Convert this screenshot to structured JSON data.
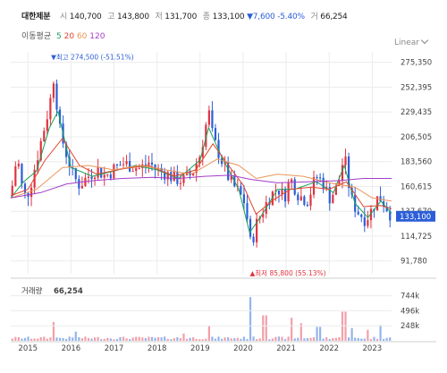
{
  "header": {
    "name": "대한제분",
    "open_label": "시",
    "open": "140,700",
    "high_label": "고",
    "high": "143,800",
    "low_label": "저",
    "low": "131,700",
    "close_label": "종",
    "close": "133,100",
    "change": "▼7,600 -5.40%",
    "volume_label": "거",
    "volume": "66,254"
  },
  "ma_legend": {
    "label": "이동평균",
    "items": [
      {
        "text": "5",
        "color": "#1aa05a"
      },
      {
        "text": "20",
        "color": "#e0462e"
      },
      {
        "text": "60",
        "color": "#e8965a"
      },
      {
        "text": "120",
        "color": "#a33cc8"
      }
    ]
  },
  "scale_mode": "Linear",
  "colors": {
    "up": "#e0333f",
    "down": "#2b5ed7",
    "price_tag": "#2b5ed7",
    "ma5": "#1aa05a",
    "ma20": "#e0462e",
    "ma60": "#e8965a",
    "ma120": "#a33cc8",
    "volume_up": "#f2a0a8",
    "volume_down": "#94b4ec",
    "grid": "#ececec"
  },
  "chart_data": {
    "type": "candlestick",
    "title": "대한제분",
    "price_axis": {
      "ticks": [
        275350,
        252395,
        229435,
        206505,
        183560,
        160615,
        137670,
        114725,
        91780
      ],
      "tick_labels": [
        "275,350",
        "252,395",
        "229,435",
        "206,505",
        "183,560",
        "160,615",
        "137,670",
        "114,725",
        "91,780"
      ],
      "range": [
        80000,
        285000
      ]
    },
    "x_axis": {
      "labels": [
        "2015",
        "2016",
        "2017",
        "2018",
        "2019",
        "2020",
        "2021",
        "2022",
        "2023"
      ],
      "range": [
        2014.6,
        2023.45
      ]
    },
    "current_price": 133100,
    "current_price_label": "133,100",
    "annotations": [
      {
        "text": "최고 274,500 (-51.51%)",
        "date": 2015.6,
        "price": 274500,
        "marker": "▼"
      },
      {
        "text": "최저 85,800 (55.13%)",
        "date": 2020.22,
        "price": 85800,
        "marker": "▲"
      }
    ],
    "price_path": [
      [
        2014.6,
        152000
      ],
      [
        2014.75,
        190000
      ],
      [
        2014.85,
        162000
      ],
      [
        2014.95,
        150000
      ],
      [
        2015.05,
        160000
      ],
      [
        2015.2,
        185000
      ],
      [
        2015.35,
        210000
      ],
      [
        2015.5,
        235000
      ],
      [
        2015.6,
        262000
      ],
      [
        2015.75,
        210000
      ],
      [
        2015.9,
        190000
      ],
      [
        2016.05,
        170000
      ],
      [
        2016.2,
        162000
      ],
      [
        2016.4,
        170000
      ],
      [
        2016.6,
        177000
      ],
      [
        2016.8,
        170000
      ],
      [
        2017.0,
        177000
      ],
      [
        2017.2,
        182000
      ],
      [
        2017.4,
        180000
      ],
      [
        2017.6,
        177000
      ],
      [
        2017.8,
        183000
      ],
      [
        2018.0,
        176000
      ],
      [
        2018.2,
        173000
      ],
      [
        2018.4,
        168000
      ],
      [
        2018.6,
        166000
      ],
      [
        2018.8,
        172000
      ],
      [
        2019.0,
        190000
      ],
      [
        2019.2,
        230000
      ],
      [
        2019.3,
        205000
      ],
      [
        2019.5,
        185000
      ],
      [
        2019.7,
        165000
      ],
      [
        2019.9,
        155000
      ],
      [
        2020.05,
        145000
      ],
      [
        2020.18,
        105000
      ],
      [
        2020.3,
        125000
      ],
      [
        2020.45,
        138000
      ],
      [
        2020.6,
        150000
      ],
      [
        2020.8,
        160000
      ],
      [
        2020.95,
        150000
      ],
      [
        2021.1,
        168000
      ],
      [
        2021.3,
        152000
      ],
      [
        2021.5,
        148000
      ],
      [
        2021.7,
        170000
      ],
      [
        2021.85,
        165000
      ],
      [
        2022.0,
        150000
      ],
      [
        2022.2,
        160000
      ],
      [
        2022.35,
        190000
      ],
      [
        2022.5,
        150000
      ],
      [
        2022.65,
        138000
      ],
      [
        2022.85,
        130000
      ],
      [
        2023.0,
        140000
      ],
      [
        2023.15,
        152000
      ],
      [
        2023.3,
        144000
      ],
      [
        2023.45,
        133100
      ]
    ],
    "ma_lines": [
      {
        "name": "5",
        "points": [
          [
            2014.6,
            150000
          ],
          [
            2014.9,
            165000
          ],
          [
            2015.2,
            175000
          ],
          [
            2015.5,
            215000
          ],
          [
            2015.7,
            230000
          ],
          [
            2016.0,
            178000
          ],
          [
            2016.5,
            170000
          ],
          [
            2017.0,
            175000
          ],
          [
            2017.5,
            180000
          ],
          [
            2018.0,
            176000
          ],
          [
            2018.5,
            168000
          ],
          [
            2019.0,
            185000
          ],
          [
            2019.2,
            215000
          ],
          [
            2019.5,
            188000
          ],
          [
            2019.9,
            158000
          ],
          [
            2020.15,
            118000
          ],
          [
            2020.4,
            132000
          ],
          [
            2020.8,
            158000
          ],
          [
            2021.2,
            158000
          ],
          [
            2021.7,
            165000
          ],
          [
            2022.1,
            155000
          ],
          [
            2022.35,
            180000
          ],
          [
            2022.6,
            145000
          ],
          [
            2022.9,
            132000
          ],
          [
            2023.2,
            147000
          ],
          [
            2023.45,
            136000
          ]
        ]
      },
      {
        "name": "20",
        "points": [
          [
            2014.6,
            152000
          ],
          [
            2015.0,
            158000
          ],
          [
            2015.4,
            185000
          ],
          [
            2015.8,
            205000
          ],
          [
            2016.2,
            180000
          ],
          [
            2016.6,
            172000
          ],
          [
            2017.2,
            177000
          ],
          [
            2017.8,
            180000
          ],
          [
            2018.4,
            170000
          ],
          [
            2018.9,
            176000
          ],
          [
            2019.3,
            200000
          ],
          [
            2019.7,
            178000
          ],
          [
            2020.0,
            162000
          ],
          [
            2020.3,
            135000
          ],
          [
            2020.7,
            148000
          ],
          [
            2021.1,
            158000
          ],
          [
            2021.6,
            160000
          ],
          [
            2022.0,
            158000
          ],
          [
            2022.4,
            165000
          ],
          [
            2022.8,
            142000
          ],
          [
            2023.2,
            143000
          ],
          [
            2023.45,
            140000
          ]
        ]
      },
      {
        "name": "60",
        "points": [
          [
            2014.6,
            150000
          ],
          [
            2015.2,
            158000
          ],
          [
            2015.8,
            178000
          ],
          [
            2016.4,
            180000
          ],
          [
            2017.0,
            176000
          ],
          [
            2017.6,
            180000
          ],
          [
            2018.2,
            176000
          ],
          [
            2018.8,
            172000
          ],
          [
            2019.4,
            186000
          ],
          [
            2019.9,
            180000
          ],
          [
            2020.3,
            168000
          ],
          [
            2020.8,
            172000
          ],
          [
            2021.4,
            170000
          ],
          [
            2022.0,
            164000
          ],
          [
            2022.6,
            160000
          ],
          [
            2023.0,
            150000
          ],
          [
            2023.45,
            147000
          ]
        ]
      },
      {
        "name": "120",
        "points": [
          [
            2014.6,
            150000
          ],
          [
            2015.3,
            155000
          ],
          [
            2015.9,
            163000
          ],
          [
            2016.5,
            166000
          ],
          [
            2017.2,
            168000
          ],
          [
            2017.9,
            169000
          ],
          [
            2018.5,
            168000
          ],
          [
            2019.1,
            170000
          ],
          [
            2019.7,
            171000
          ],
          [
            2020.2,
            167000
          ],
          [
            2020.8,
            164000
          ],
          [
            2021.5,
            165000
          ],
          [
            2022.2,
            166000
          ],
          [
            2022.8,
            168000
          ],
          [
            2023.45,
            168000
          ]
        ]
      }
    ],
    "volume": {
      "label": "거래량",
      "value_label": "66,254",
      "ticks": [
        744000,
        496000,
        248000
      ],
      "tick_labels": [
        "744k",
        "496k",
        "248k"
      ],
      "range": [
        0,
        900000
      ],
      "spikes": [
        [
          2015.6,
          310000
        ],
        [
          2016.1,
          150000
        ],
        [
          2018.6,
          120000
        ],
        [
          2019.2,
          250000
        ],
        [
          2020.18,
          720000
        ],
        [
          2020.5,
          420000
        ],
        [
          2021.1,
          380000
        ],
        [
          2021.35,
          290000
        ],
        [
          2021.75,
          230000
        ],
        [
          2022.35,
          480000
        ],
        [
          2022.5,
          210000
        ],
        [
          2022.9,
          180000
        ],
        [
          2023.2,
          260000
        ]
      ]
    }
  }
}
